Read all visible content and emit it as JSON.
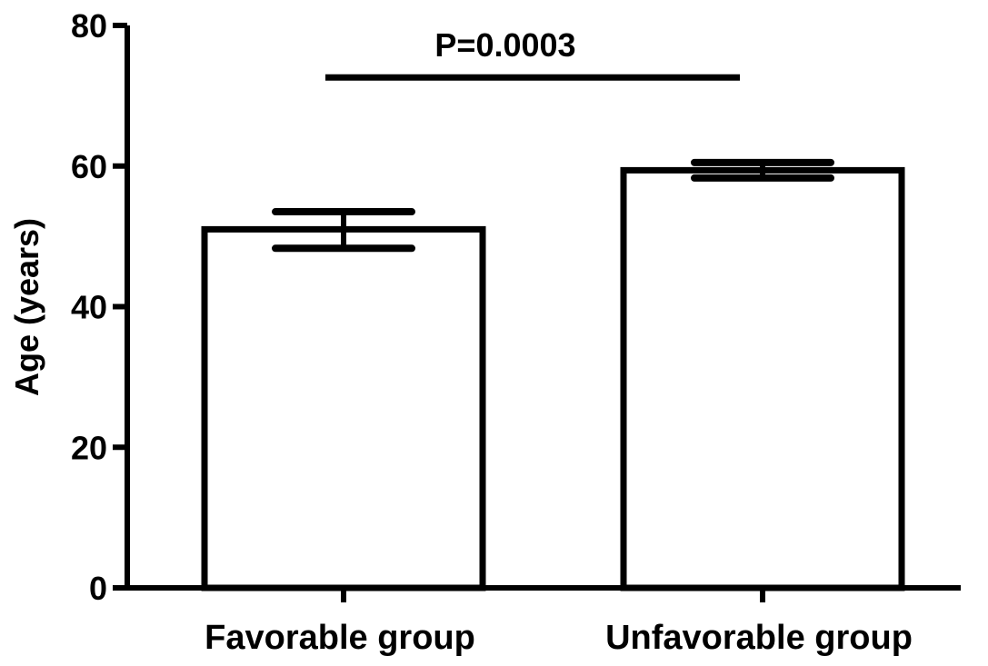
{
  "chart_data": {
    "type": "bar",
    "title": "",
    "xlabel": "",
    "ylabel": "Age (years)",
    "ylim": [
      0,
      80
    ],
    "yticks": [
      0,
      20,
      40,
      60,
      80
    ],
    "categories": [
      "Favorable group",
      "Unfavorable group"
    ],
    "values": [
      51.0,
      59.4
    ],
    "error_upper": [
      53.5,
      60.5
    ],
    "error_lower": [
      48.3,
      58.3
    ],
    "grid": false,
    "bar_fill": "#ffffff",
    "stroke_color": "#000000",
    "annotations": [
      {
        "text": "P=0.0003",
        "type": "significance-bracket",
        "between": [
          "Favorable group",
          "Unfavorable group"
        ],
        "y": 72.6
      }
    ]
  }
}
